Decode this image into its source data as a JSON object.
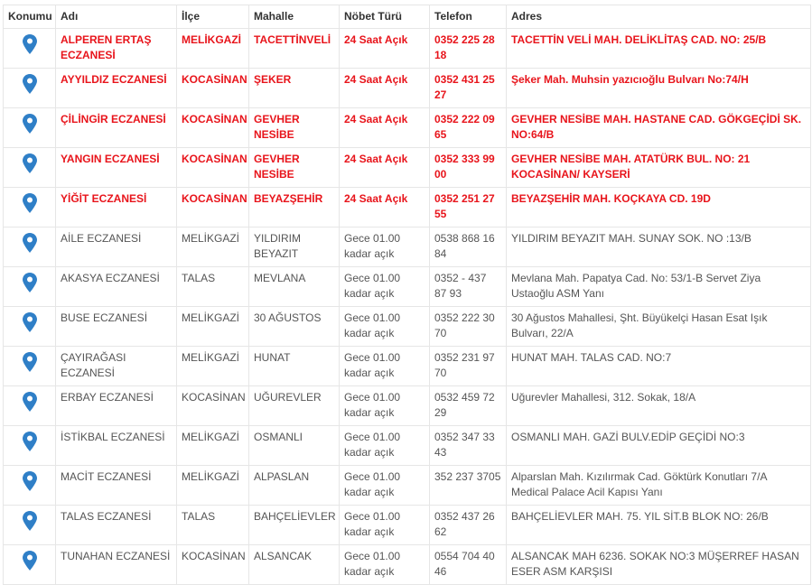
{
  "headers": [
    "Konumu",
    "Adı",
    "İlçe",
    "Mahalle",
    "Nöbet Türü",
    "Telefon",
    "Adres"
  ],
  "colors": {
    "duty_text": "#e8141b",
    "pin": "#2f7fc7",
    "normal_text": "#555555"
  },
  "rows": [
    {
      "highlight": true,
      "icon": "map-pin-icon",
      "name": "ALPEREN ERTAŞ ECZANESİ",
      "district": "MELİKGAZİ",
      "neighborhood": "TACETTİNVELİ",
      "type": "24 Saat Açık",
      "phone": "0352 225 28 18",
      "address": "TACETTİN VELİ MAH. DELİKLİTAŞ CAD. NO: 25/B"
    },
    {
      "highlight": true,
      "icon": "map-pin-icon",
      "name": "AYYILDIZ ECZANESİ",
      "district": "KOCASİNAN",
      "neighborhood": "ŞEKER",
      "type": "24 Saat Açık",
      "phone": "0352 431 25 27",
      "address": "Şeker Mah. Muhsin yazıcıoğlu Bulvarı No:74/H"
    },
    {
      "highlight": true,
      "icon": "map-pin-icon",
      "name": "ÇİLİNGİR ECZANESİ",
      "district": "KOCASİNAN",
      "neighborhood": "GEVHER NESİBE",
      "type": "24 Saat Açık",
      "phone": "0352 222 09 65",
      "address": "GEVHER NESİBE MAH. HASTANE CAD. GÖKGEÇİDİ SK. NO:64/B"
    },
    {
      "highlight": true,
      "icon": "map-pin-icon",
      "name": "YANGIN ECZANESİ",
      "district": "KOCASİNAN",
      "neighborhood": "GEVHER NESİBE",
      "type": "24 Saat Açık",
      "phone": "0352 333 99 00",
      "address": "GEVHER NESİBE MAH. ATATÜRK BUL. NO: 21 KOCASİNAN/ KAYSERİ"
    },
    {
      "highlight": true,
      "icon": "map-pin-icon",
      "name": "YİĞİT ECZANESİ",
      "district": "KOCASİNAN",
      "neighborhood": "BEYAZŞEHİR",
      "type": "24 Saat Açık",
      "phone": "0352 251 27 55",
      "address": "BEYAZŞEHİR MAH. KOÇKAYA CD. 19D"
    },
    {
      "highlight": false,
      "icon": "map-pin-icon",
      "name": "AİLE ECZANESİ",
      "district": "MELİKGAZİ",
      "neighborhood": "YILDIRIM BEYAZIT",
      "type": "Gece 01.00 kadar açık",
      "phone": "0538 868 16 84",
      "address": "YILDIRIM BEYAZIT MAH. SUNAY SOK. NO :13/B"
    },
    {
      "highlight": false,
      "icon": "map-pin-icon",
      "name": "AKASYA ECZANESİ",
      "district": "TALAS",
      "neighborhood": "MEVLANA",
      "type": "Gece 01.00 kadar açık",
      "phone": "0352 - 437 87 93",
      "address": "Mevlana Mah. Papatya Cad. No: 53/1-B Servet Ziya Ustaoğlu ASM Yanı"
    },
    {
      "highlight": false,
      "icon": "map-pin-icon",
      "name": "BUSE ECZANESİ",
      "district": "MELİKGAZİ",
      "neighborhood": "30 AĞUSTOS",
      "type": "Gece 01.00 kadar açık",
      "phone": "0352 222 30 70",
      "address": "30 Ağustos Mahallesi, Şht. Büyükelçi Hasan Esat Işık Bulvarı, 22/A"
    },
    {
      "highlight": false,
      "icon": "map-pin-icon",
      "name": "ÇAYIRAĞASI ECZANESİ",
      "district": "MELİKGAZİ",
      "neighborhood": "HUNAT",
      "type": "Gece 01.00 kadar açık",
      "phone": "0352 231 97 70",
      "address": "HUNAT MAH. TALAS CAD. NO:7"
    },
    {
      "highlight": false,
      "icon": "map-pin-icon",
      "name": "ERBAY ECZANESİ",
      "district": "KOCASİNAN",
      "neighborhood": "UĞUREVLER",
      "type": "Gece 01.00 kadar açık",
      "phone": "0532 459 72 29",
      "address": "Uğurevler Mahallesi, 312. Sokak, 18/A"
    },
    {
      "highlight": false,
      "icon": "map-pin-icon",
      "name": "İSTİKBAL ECZANESİ",
      "district": "MELİKGAZİ",
      "neighborhood": "OSMANLI",
      "type": "Gece 01.00 kadar açık",
      "phone": "0352 347 33 43",
      "address": "OSMANLI MAH. GAZİ BULV.EDİP GEÇİDİ NO:3"
    },
    {
      "highlight": false,
      "icon": "map-pin-icon",
      "name": "MACİT ECZANESİ",
      "district": "MELİKGAZİ",
      "neighborhood": "ALPASLAN",
      "type": "Gece 01.00 kadar açık",
      "phone": "352 237 3705",
      "address": "Alparslan Mah. Kızılırmak Cad. Göktürk Konutları 7/A Medical Palace Acil Kapısı Yanı"
    },
    {
      "highlight": false,
      "icon": "map-pin-icon",
      "name": "TALAS ECZANESİ",
      "district": "TALAS",
      "neighborhood": "BAHÇELİEVLER",
      "type": "Gece 01.00 kadar açık",
      "phone": "0352 437 26 62",
      "address": "BAHÇELİEVLER MAH. 75. YIL SİT.B BLOK NO: 26/B"
    },
    {
      "highlight": false,
      "icon": "map-pin-icon",
      "name": "TUNAHAN ECZANESİ",
      "district": "KOCASİNAN",
      "neighborhood": "ALSANCAK",
      "type": "Gece 01.00 kadar açık",
      "phone": "0554 704 40 46",
      "address": "ALSANCAK MAH 6236. SOKAK NO:3 MÜŞERREF HASAN ESER ASM KARŞISI"
    }
  ]
}
